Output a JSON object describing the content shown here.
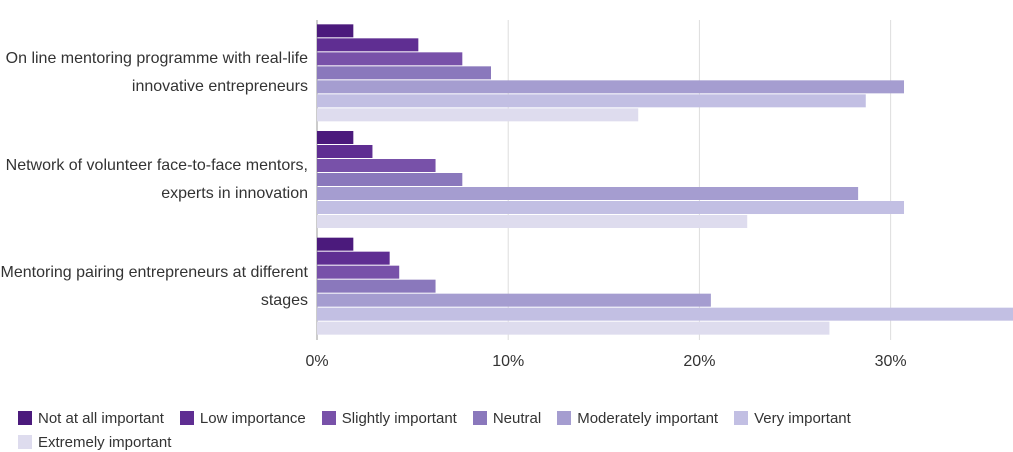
{
  "chart_data": {
    "type": "bar",
    "orientation": "horizontal",
    "categories": [
      "On line mentoring programme with real-life innovative entrepreneurs",
      "Network of volunteer face-to-face mentors, experts in innovation",
      "Mentoring pairing entrepreneurs at different stages"
    ],
    "series": [
      {
        "name": "Not at all important",
        "color": "#4b1a7c",
        "values": [
          1.9,
          1.9,
          1.9
        ]
      },
      {
        "name": "Low importance",
        "color": "#5f2e92",
        "values": [
          5.3,
          2.9,
          3.8
        ]
      },
      {
        "name": "Slightly important",
        "color": "#7851a9",
        "values": [
          7.6,
          6.2,
          4.3
        ]
      },
      {
        "name": "Neutral",
        "color": "#8a78bc",
        "values": [
          9.1,
          7.6,
          6.2
        ]
      },
      {
        "name": "Moderately important",
        "color": "#a59dd0",
        "values": [
          30.7,
          28.3,
          20.6
        ]
      },
      {
        "name": "Very important",
        "color": "#c2bfe3",
        "values": [
          28.7,
          30.7,
          36.4
        ]
      },
      {
        "name": "Extremely important",
        "color": "#dedcee",
        "values": [
          16.8,
          22.5,
          26.8
        ]
      }
    ],
    "xlim": [
      0,
      36.4
    ],
    "xticks": [
      {
        "value": 0,
        "label": "0%"
      },
      {
        "value": 10,
        "label": "10%"
      },
      {
        "value": 20,
        "label": "20%"
      },
      {
        "value": 30,
        "label": "30%"
      }
    ],
    "grid": true,
    "legend": "bottom"
  }
}
